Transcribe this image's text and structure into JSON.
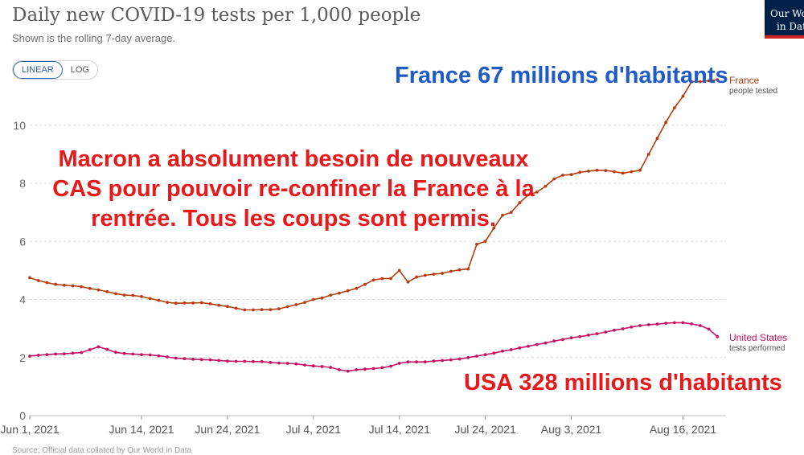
{
  "header": {
    "title": "Daily new COVID-19 tests per 1,000 people",
    "subtitle": "Shown is the rolling 7-day average."
  },
  "logo": {
    "line1": "Our World",
    "line2": "in Data"
  },
  "scale_toggle": {
    "linear_label": "LINEAR",
    "log_label": "LOG",
    "selected": "LINEAR"
  },
  "annotations": {
    "france": "France 67 millions d'habitants",
    "macron": "Macron a absolument besoin de nouveaux CAS pour pouvoir re-confiner la France à la rentrée. Tous les coups sont permis.",
    "usa": "USA 328 millions d'habitants"
  },
  "footer": {
    "source": "Source: Official data collated by Our World in Data"
  },
  "chart_data": {
    "type": "line",
    "title": "Daily new COVID-19 tests per 1,000 people",
    "subtitle": "Shown is the rolling 7-day average.",
    "xlabel": "",
    "ylabel": "",
    "ylim": [
      0,
      11.6
    ],
    "yticks": [
      0,
      2,
      4,
      6,
      8,
      10
    ],
    "grid": true,
    "x_start_day": 1,
    "x_end_day": 82,
    "xticks": [
      {
        "label": "Jun 1, 2021",
        "day": 1
      },
      {
        "label": "Jun 14, 2021",
        "day": 14
      },
      {
        "label": "Jun 24, 2021",
        "day": 24
      },
      {
        "label": "Jul 4, 2021",
        "day": 34
      },
      {
        "label": "Jul 14, 2021",
        "day": 44
      },
      {
        "label": "Jul 24, 2021",
        "day": 54
      },
      {
        "label": "Aug 3, 2021",
        "day": 64
      },
      {
        "label": "Aug 16, 2021",
        "day": 77
      }
    ],
    "series": [
      {
        "name": "France",
        "sublabel": "people tested",
        "color": "#b63d0e",
        "values": [
          4.75,
          4.65,
          4.58,
          4.52,
          4.49,
          4.47,
          4.44,
          4.38,
          4.33,
          4.27,
          4.2,
          4.15,
          4.14,
          4.1,
          4.03,
          3.97,
          3.9,
          3.87,
          3.88,
          3.88,
          3.89,
          3.85,
          3.8,
          3.76,
          3.7,
          3.64,
          3.64,
          3.65,
          3.65,
          3.68,
          3.75,
          3.82,
          3.9,
          4.0,
          4.05,
          4.15,
          4.22,
          4.3,
          4.38,
          4.52,
          4.67,
          4.72,
          4.72,
          5.0,
          4.6,
          4.77,
          4.83,
          4.87,
          4.9,
          4.97,
          5.02,
          5.05,
          5.9,
          6.0,
          6.46,
          6.9,
          7.0,
          7.33,
          7.6,
          7.7,
          7.9,
          8.15,
          8.28,
          8.3,
          8.38,
          8.42,
          8.45,
          8.44,
          8.4,
          8.35,
          8.4,
          8.45,
          9.0,
          9.55,
          10.1,
          10.6,
          11.0,
          11.5,
          11.5,
          11.53,
          11.57
        ]
      },
      {
        "name": "United States",
        "sublabel": "tests performed",
        "color": "#c31362",
        "values": [
          2.05,
          2.08,
          2.1,
          2.12,
          2.13,
          2.15,
          2.17,
          2.27,
          2.37,
          2.28,
          2.18,
          2.14,
          2.12,
          2.1,
          2.09,
          2.06,
          2.02,
          1.98,
          1.96,
          1.94,
          1.93,
          1.92,
          1.9,
          1.88,
          1.87,
          1.87,
          1.86,
          1.86,
          1.83,
          1.81,
          1.8,
          1.78,
          1.74,
          1.71,
          1.69,
          1.66,
          1.58,
          1.53,
          1.58,
          1.6,
          1.62,
          1.65,
          1.7,
          1.8,
          1.85,
          1.85,
          1.85,
          1.88,
          1.9,
          1.92,
          1.95,
          2.0,
          2.05,
          2.1,
          2.15,
          2.22,
          2.27,
          2.33,
          2.39,
          2.45,
          2.5,
          2.57,
          2.62,
          2.68,
          2.72,
          2.77,
          2.82,
          2.88,
          2.94,
          2.99,
          3.05,
          3.1,
          3.13,
          3.15,
          3.18,
          3.2,
          3.2,
          3.16,
          3.1,
          2.98,
          2.72
        ]
      }
    ]
  }
}
